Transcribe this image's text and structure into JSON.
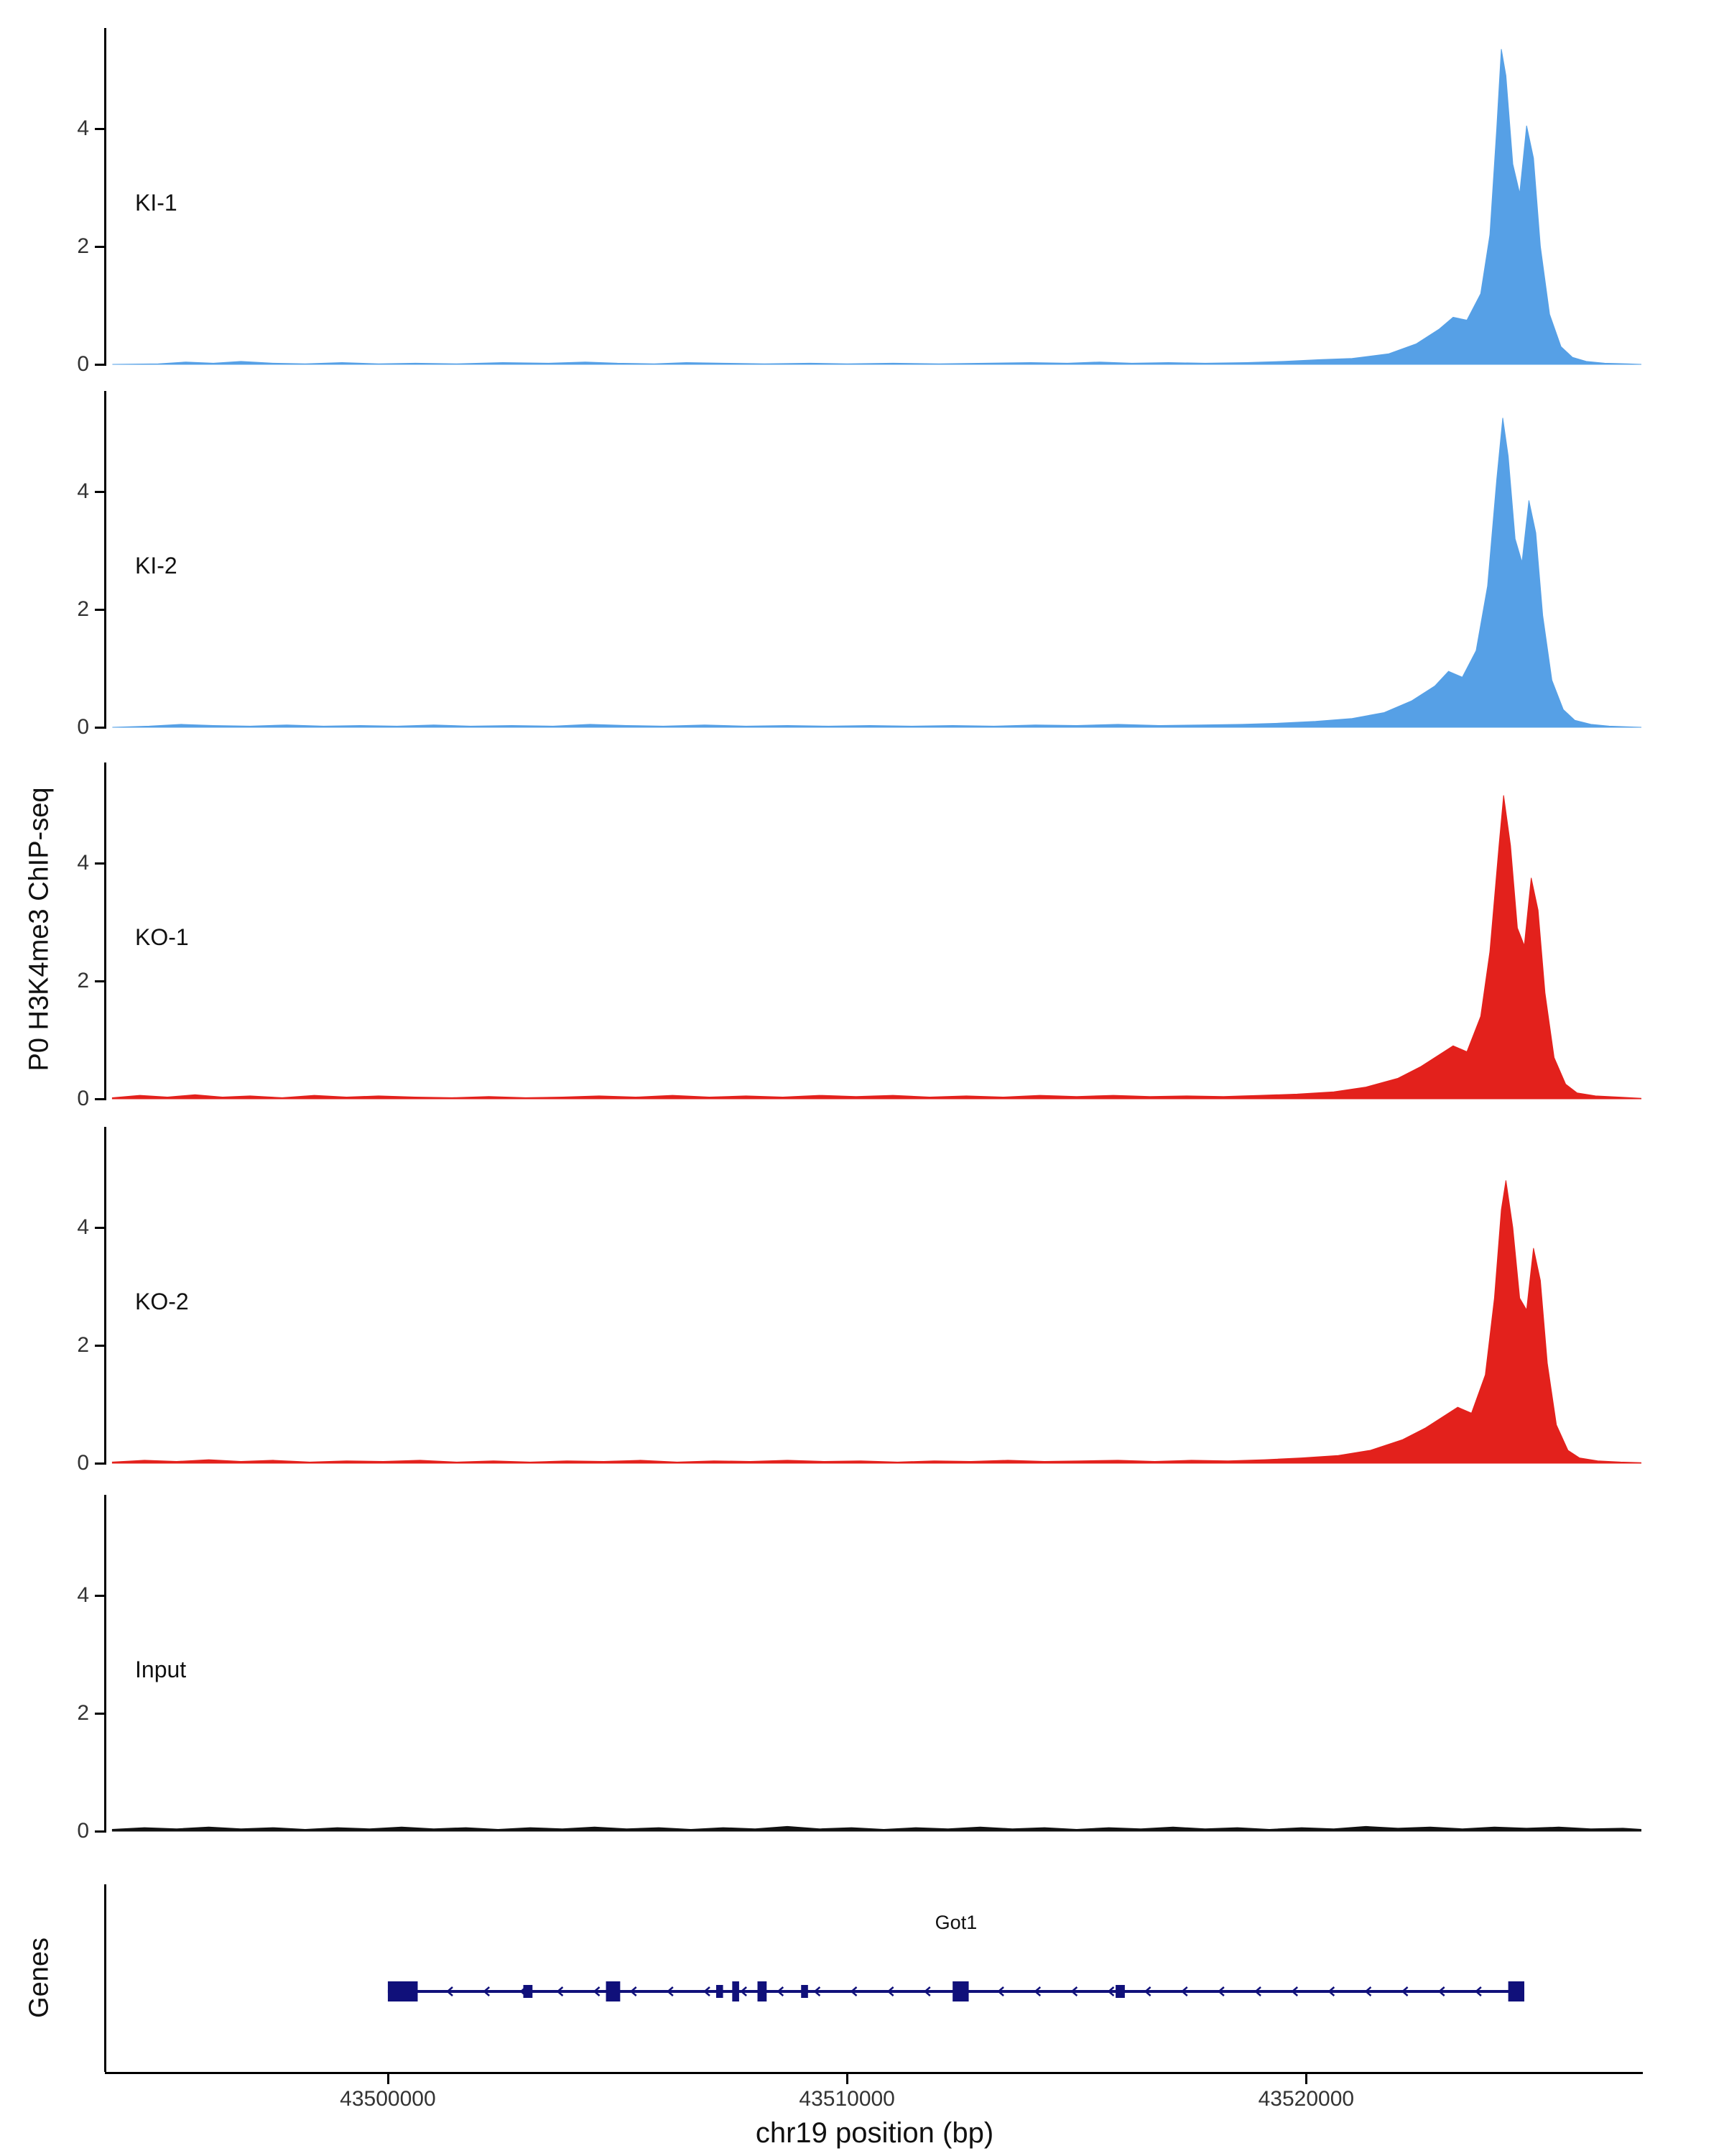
{
  "figure": {
    "y_axis_title": "P0 H3K4me3 ChIP-seq",
    "genes_axis_title": "Genes",
    "x_axis_title": "chr19 position (bp)"
  },
  "chart_data": {
    "type": "area",
    "title": "",
    "xlabel": "chr19 position (bp)",
    "ylabel": "P0 H3K4me3 ChIP-seq",
    "xlim": [
      43493900,
      43527300
    ],
    "ylim": [
      0,
      5.7
    ],
    "x_ticks": [
      43500000,
      43510000,
      43520000
    ],
    "x_tick_labels": [
      "43500000",
      "43510000",
      "43520000"
    ],
    "y_ticks": [
      0,
      2,
      4
    ],
    "grid": false,
    "legend_position": "none",
    "tracks": [
      {
        "label": "KI-1",
        "color": "#56A0E6",
        "points": [
          [
            43494000,
            0
          ],
          [
            43495000,
            0.01
          ],
          [
            43495600,
            0.04
          ],
          [
            43496200,
            0.02
          ],
          [
            43496800,
            0.05
          ],
          [
            43497500,
            0.02
          ],
          [
            43498200,
            0.01
          ],
          [
            43499000,
            0.03
          ],
          [
            43499800,
            0.01
          ],
          [
            43500600,
            0.02
          ],
          [
            43501500,
            0.01
          ],
          [
            43502500,
            0.03
          ],
          [
            43503500,
            0.02
          ],
          [
            43504300,
            0.04
          ],
          [
            43505000,
            0.02
          ],
          [
            43505800,
            0.01
          ],
          [
            43506500,
            0.03
          ],
          [
            43507300,
            0.02
          ],
          [
            43508200,
            0.01
          ],
          [
            43509200,
            0.02
          ],
          [
            43510000,
            0.01
          ],
          [
            43511000,
            0.02
          ],
          [
            43512000,
            0.01
          ],
          [
            43513000,
            0.02
          ],
          [
            43514000,
            0.03
          ],
          [
            43514800,
            0.02
          ],
          [
            43515500,
            0.04
          ],
          [
            43516200,
            0.02
          ],
          [
            43517000,
            0.03
          ],
          [
            43517800,
            0.02
          ],
          [
            43518700,
            0.03
          ],
          [
            43519500,
            0.05
          ],
          [
            43520300,
            0.08
          ],
          [
            43521000,
            0.1
          ],
          [
            43521800,
            0.18
          ],
          [
            43522400,
            0.35
          ],
          [
            43522900,
            0.6
          ],
          [
            43523200,
            0.8
          ],
          [
            43523500,
            0.75
          ],
          [
            43523800,
            1.2
          ],
          [
            43524000,
            2.2
          ],
          [
            43524150,
            4.0
          ],
          [
            43524250,
            5.35
          ],
          [
            43524350,
            4.9
          ],
          [
            43524500,
            3.4
          ],
          [
            43524650,
            2.9
          ],
          [
            43524800,
            4.05
          ],
          [
            43524950,
            3.5
          ],
          [
            43525100,
            2.0
          ],
          [
            43525300,
            0.85
          ],
          [
            43525550,
            0.3
          ],
          [
            43525800,
            0.12
          ],
          [
            43526100,
            0.05
          ],
          [
            43526500,
            0.02
          ],
          [
            43527000,
            0.01
          ],
          [
            43527300,
            0
          ]
        ]
      },
      {
        "label": "KI-2",
        "color": "#56A0E6",
        "points": [
          [
            43494000,
            0
          ],
          [
            43494800,
            0.02
          ],
          [
            43495500,
            0.05
          ],
          [
            43496200,
            0.03
          ],
          [
            43497000,
            0.02
          ],
          [
            43497800,
            0.04
          ],
          [
            43498600,
            0.02
          ],
          [
            43499400,
            0.03
          ],
          [
            43500200,
            0.02
          ],
          [
            43501000,
            0.04
          ],
          [
            43501800,
            0.02
          ],
          [
            43502700,
            0.03
          ],
          [
            43503600,
            0.02
          ],
          [
            43504400,
            0.05
          ],
          [
            43505200,
            0.03
          ],
          [
            43506000,
            0.02
          ],
          [
            43506900,
            0.04
          ],
          [
            43507800,
            0.02
          ],
          [
            43508700,
            0.03
          ],
          [
            43509600,
            0.02
          ],
          [
            43510500,
            0.03
          ],
          [
            43511400,
            0.02
          ],
          [
            43512300,
            0.03
          ],
          [
            43513200,
            0.02
          ],
          [
            43514100,
            0.04
          ],
          [
            43515000,
            0.03
          ],
          [
            43515900,
            0.05
          ],
          [
            43516800,
            0.03
          ],
          [
            43517700,
            0.04
          ],
          [
            43518600,
            0.05
          ],
          [
            43519400,
            0.07
          ],
          [
            43520200,
            0.1
          ],
          [
            43521000,
            0.15
          ],
          [
            43521700,
            0.25
          ],
          [
            43522300,
            0.45
          ],
          [
            43522800,
            0.7
          ],
          [
            43523100,
            0.95
          ],
          [
            43523400,
            0.85
          ],
          [
            43523700,
            1.3
          ],
          [
            43523950,
            2.4
          ],
          [
            43524150,
            4.2
          ],
          [
            43524280,
            5.25
          ],
          [
            43524400,
            4.6
          ],
          [
            43524550,
            3.2
          ],
          [
            43524700,
            2.8
          ],
          [
            43524850,
            3.85
          ],
          [
            43525000,
            3.3
          ],
          [
            43525150,
            1.9
          ],
          [
            43525350,
            0.8
          ],
          [
            43525600,
            0.3
          ],
          [
            43525850,
            0.12
          ],
          [
            43526200,
            0.05
          ],
          [
            43526600,
            0.02
          ],
          [
            43527300,
            0
          ]
        ]
      },
      {
        "label": "KO-1",
        "color": "#E3211C",
        "points": [
          [
            43494000,
            0.02
          ],
          [
            43494600,
            0.06
          ],
          [
            43495200,
            0.03
          ],
          [
            43495800,
            0.07
          ],
          [
            43496400,
            0.03
          ],
          [
            43497000,
            0.05
          ],
          [
            43497700,
            0.02
          ],
          [
            43498400,
            0.06
          ],
          [
            43499100,
            0.03
          ],
          [
            43499800,
            0.05
          ],
          [
            43500600,
            0.03
          ],
          [
            43501400,
            0.02
          ],
          [
            43502200,
            0.04
          ],
          [
            43503000,
            0.02
          ],
          [
            43503800,
            0.03
          ],
          [
            43504600,
            0.05
          ],
          [
            43505400,
            0.03
          ],
          [
            43506200,
            0.06
          ],
          [
            43507000,
            0.03
          ],
          [
            43507800,
            0.05
          ],
          [
            43508600,
            0.03
          ],
          [
            43509400,
            0.06
          ],
          [
            43510200,
            0.04
          ],
          [
            43511000,
            0.06
          ],
          [
            43511800,
            0.03
          ],
          [
            43512600,
            0.05
          ],
          [
            43513400,
            0.03
          ],
          [
            43514200,
            0.06
          ],
          [
            43515000,
            0.04
          ],
          [
            43515800,
            0.06
          ],
          [
            43516600,
            0.04
          ],
          [
            43517400,
            0.05
          ],
          [
            43518200,
            0.04
          ],
          [
            43519000,
            0.06
          ],
          [
            43519800,
            0.08
          ],
          [
            43520600,
            0.12
          ],
          [
            43521300,
            0.2
          ],
          [
            43522000,
            0.35
          ],
          [
            43522500,
            0.55
          ],
          [
            43522900,
            0.75
          ],
          [
            43523200,
            0.9
          ],
          [
            43523500,
            0.8
          ],
          [
            43523800,
            1.4
          ],
          [
            43524000,
            2.5
          ],
          [
            43524200,
            4.3
          ],
          [
            43524300,
            5.15
          ],
          [
            43524450,
            4.3
          ],
          [
            43524600,
            2.9
          ],
          [
            43524750,
            2.6
          ],
          [
            43524900,
            3.75
          ],
          [
            43525050,
            3.2
          ],
          [
            43525200,
            1.8
          ],
          [
            43525400,
            0.7
          ],
          [
            43525650,
            0.25
          ],
          [
            43525900,
            0.1
          ],
          [
            43526300,
            0.05
          ],
          [
            43526800,
            0.03
          ],
          [
            43527300,
            0.01
          ]
        ]
      },
      {
        "label": "KO-2",
        "color": "#E3211C",
        "points": [
          [
            43494000,
            0.02
          ],
          [
            43494700,
            0.05
          ],
          [
            43495400,
            0.03
          ],
          [
            43496100,
            0.06
          ],
          [
            43496800,
            0.03
          ],
          [
            43497500,
            0.05
          ],
          [
            43498300,
            0.02
          ],
          [
            43499100,
            0.04
          ],
          [
            43499900,
            0.03
          ],
          [
            43500700,
            0.05
          ],
          [
            43501500,
            0.02
          ],
          [
            43502300,
            0.04
          ],
          [
            43503100,
            0.02
          ],
          [
            43503900,
            0.04
          ],
          [
            43504700,
            0.03
          ],
          [
            43505500,
            0.05
          ],
          [
            43506300,
            0.02
          ],
          [
            43507100,
            0.04
          ],
          [
            43507900,
            0.03
          ],
          [
            43508700,
            0.05
          ],
          [
            43509500,
            0.03
          ],
          [
            43510300,
            0.04
          ],
          [
            43511100,
            0.02
          ],
          [
            43511900,
            0.04
          ],
          [
            43512700,
            0.03
          ],
          [
            43513500,
            0.05
          ],
          [
            43514300,
            0.03
          ],
          [
            43515100,
            0.04
          ],
          [
            43515900,
            0.05
          ],
          [
            43516700,
            0.03
          ],
          [
            43517500,
            0.05
          ],
          [
            43518300,
            0.04
          ],
          [
            43519100,
            0.06
          ],
          [
            43519900,
            0.09
          ],
          [
            43520700,
            0.13
          ],
          [
            43521400,
            0.22
          ],
          [
            43522100,
            0.4
          ],
          [
            43522600,
            0.6
          ],
          [
            43523000,
            0.8
          ],
          [
            43523300,
            0.95
          ],
          [
            43523600,
            0.85
          ],
          [
            43523900,
            1.5
          ],
          [
            43524100,
            2.8
          ],
          [
            43524250,
            4.3
          ],
          [
            43524350,
            4.8
          ],
          [
            43524500,
            4.0
          ],
          [
            43524650,
            2.8
          ],
          [
            43524800,
            2.6
          ],
          [
            43524950,
            3.65
          ],
          [
            43525100,
            3.1
          ],
          [
            43525250,
            1.7
          ],
          [
            43525450,
            0.65
          ],
          [
            43525700,
            0.22
          ],
          [
            43525950,
            0.09
          ],
          [
            43526350,
            0.04
          ],
          [
            43526850,
            0.02
          ],
          [
            43527300,
            0.01
          ]
        ]
      },
      {
        "label": "Input",
        "color": "#111111",
        "points": [
          [
            43494000,
            0.03
          ],
          [
            43494700,
            0.06
          ],
          [
            43495400,
            0.04
          ],
          [
            43496100,
            0.07
          ],
          [
            43496800,
            0.04
          ],
          [
            43497500,
            0.06
          ],
          [
            43498200,
            0.03
          ],
          [
            43498900,
            0.06
          ],
          [
            43499600,
            0.04
          ],
          [
            43500300,
            0.07
          ],
          [
            43501000,
            0.04
          ],
          [
            43501700,
            0.06
          ],
          [
            43502400,
            0.03
          ],
          [
            43503100,
            0.06
          ],
          [
            43503800,
            0.04
          ],
          [
            43504500,
            0.07
          ],
          [
            43505200,
            0.04
          ],
          [
            43505900,
            0.06
          ],
          [
            43506600,
            0.03
          ],
          [
            43507300,
            0.06
          ],
          [
            43508000,
            0.04
          ],
          [
            43508700,
            0.08
          ],
          [
            43509400,
            0.04
          ],
          [
            43510100,
            0.06
          ],
          [
            43510800,
            0.03
          ],
          [
            43511500,
            0.06
          ],
          [
            43512200,
            0.04
          ],
          [
            43512900,
            0.07
          ],
          [
            43513600,
            0.04
          ],
          [
            43514300,
            0.06
          ],
          [
            43515000,
            0.03
          ],
          [
            43515700,
            0.06
          ],
          [
            43516400,
            0.04
          ],
          [
            43517100,
            0.07
          ],
          [
            43517800,
            0.04
          ],
          [
            43518500,
            0.06
          ],
          [
            43519200,
            0.03
          ],
          [
            43519900,
            0.06
          ],
          [
            43520600,
            0.04
          ],
          [
            43521300,
            0.08
          ],
          [
            43522000,
            0.05
          ],
          [
            43522700,
            0.07
          ],
          [
            43523400,
            0.04
          ],
          [
            43524100,
            0.07
          ],
          [
            43524800,
            0.05
          ],
          [
            43525500,
            0.07
          ],
          [
            43526200,
            0.04
          ],
          [
            43526900,
            0.05
          ],
          [
            43527300,
            0.03
          ]
        ]
      }
    ],
    "gene_track": {
      "label": "Genes",
      "gene_name": "Got1",
      "strand": "-",
      "color": "#10107A",
      "start": 43500000,
      "end": 43524750,
      "exons": [
        [
          43500000,
          43500650,
          "tall"
        ],
        [
          43502950,
          43503150,
          "short"
        ],
        [
          43504750,
          43505060,
          "tall"
        ],
        [
          43507150,
          43507300,
          "short"
        ],
        [
          43507500,
          43507650,
          "tall"
        ],
        [
          43508050,
          43508250,
          "tall"
        ],
        [
          43509000,
          43509150,
          "short"
        ],
        [
          43512300,
          43512650,
          "tall"
        ],
        [
          43515850,
          43516050,
          "short"
        ],
        [
          43524400,
          43524750,
          "tall"
        ]
      ]
    }
  }
}
